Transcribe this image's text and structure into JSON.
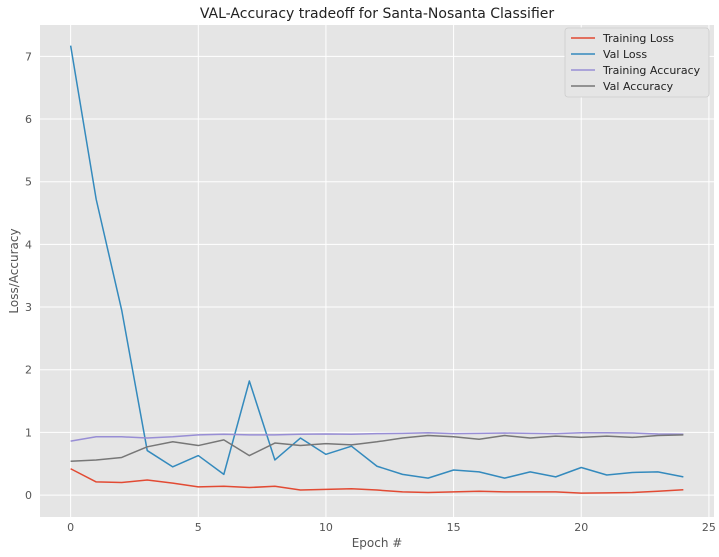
{
  "chart_data": {
    "type": "line",
    "title": "VAL-Accuracy tradeoff for Santa-Nosanta Classifier",
    "xlabel": "Epoch #",
    "ylabel": "Loss/Accuracy",
    "xlim": [
      -1.2,
      25.2
    ],
    "ylim": [
      -0.35,
      7.5
    ],
    "xticks": [
      0,
      5,
      10,
      15,
      20,
      25
    ],
    "yticks": [
      0,
      1,
      2,
      3,
      4,
      5,
      6,
      7
    ],
    "grid": true,
    "legend_position": "top-right",
    "x": [
      0,
      1,
      2,
      3,
      4,
      5,
      6,
      7,
      8,
      9,
      10,
      11,
      12,
      13,
      14,
      15,
      16,
      17,
      18,
      19,
      20,
      21,
      22,
      23,
      24
    ],
    "series": [
      {
        "name": "Training Loss",
        "color": "#E24A33",
        "values": [
          0.42,
          0.21,
          0.2,
          0.24,
          0.19,
          0.13,
          0.14,
          0.12,
          0.14,
          0.08,
          0.09,
          0.1,
          0.08,
          0.05,
          0.04,
          0.05,
          0.06,
          0.05,
          0.05,
          0.05,
          0.03,
          0.035,
          0.04,
          0.06,
          0.085
        ]
      },
      {
        "name": "Val Loss",
        "color": "#348ABD",
        "values": [
          7.17,
          4.72,
          2.95,
          0.71,
          0.45,
          0.63,
          0.33,
          1.82,
          0.56,
          0.91,
          0.65,
          0.78,
          0.46,
          0.33,
          0.27,
          0.4,
          0.37,
          0.27,
          0.37,
          0.29,
          0.44,
          0.32,
          0.36,
          0.37,
          0.29
        ]
      },
      {
        "name": "Training Accuracy",
        "color": "#988ED5",
        "values": [
          0.86,
          0.93,
          0.93,
          0.91,
          0.93,
          0.96,
          0.97,
          0.96,
          0.96,
          0.97,
          0.975,
          0.97,
          0.98,
          0.985,
          0.995,
          0.98,
          0.985,
          0.99,
          0.985,
          0.98,
          0.995,
          0.995,
          0.99,
          0.975,
          0.97
        ]
      },
      {
        "name": "Val Accuracy",
        "color": "#777777",
        "values": [
          0.54,
          0.56,
          0.6,
          0.77,
          0.85,
          0.79,
          0.88,
          0.63,
          0.83,
          0.79,
          0.82,
          0.8,
          0.85,
          0.91,
          0.95,
          0.93,
          0.89,
          0.95,
          0.91,
          0.94,
          0.92,
          0.94,
          0.92,
          0.95,
          0.96
        ]
      }
    ]
  },
  "style": {
    "plot_background": "#E5E5E5",
    "grid_color": "#FFFFFF",
    "page_background": "#FFFFFF"
  }
}
